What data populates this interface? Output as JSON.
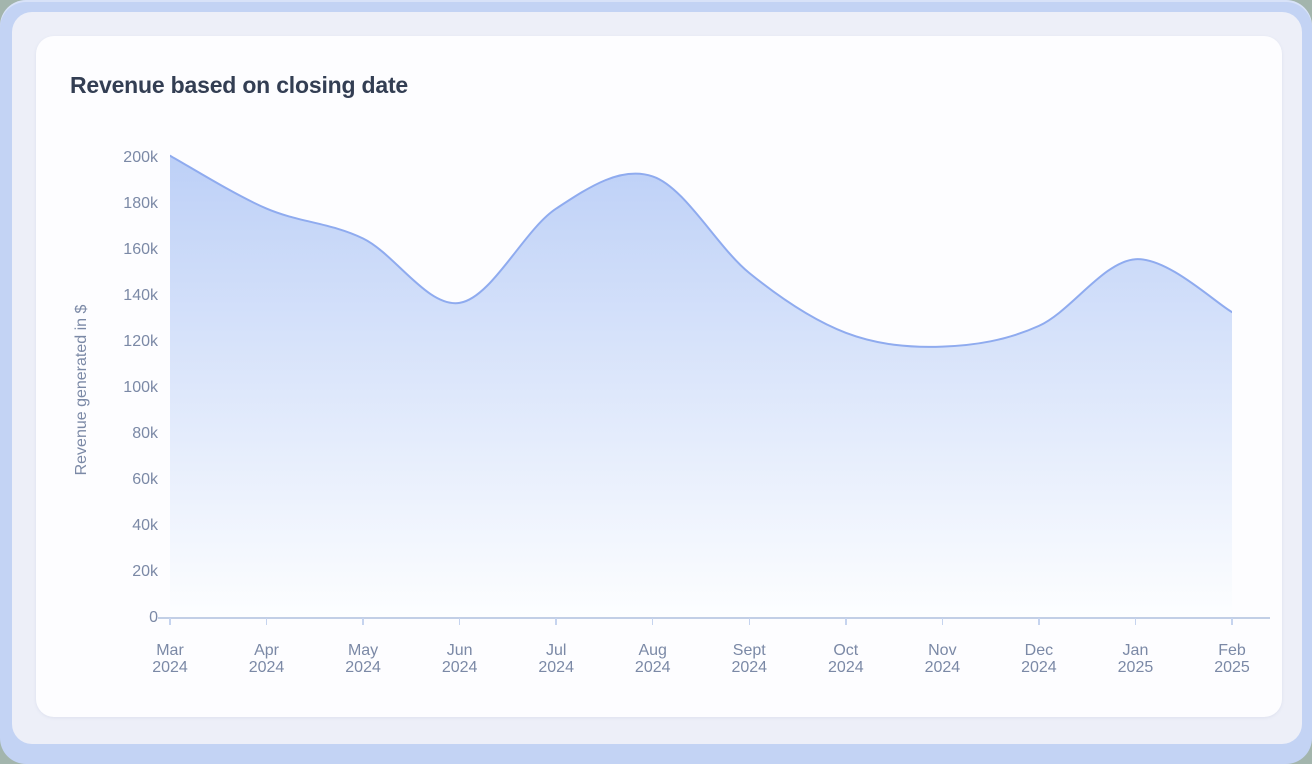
{
  "card": {
    "title": "Revenue based on closing date"
  },
  "chart_data": {
    "type": "area",
    "title": "Revenue based on closing date",
    "xlabel": "",
    "ylabel": "Revenue generated in $",
    "categories": [
      "Mar 2024",
      "Apr 2024",
      "May 2024",
      "Jun 2024",
      "Jul 2024",
      "Aug 2024",
      "Sept 2024",
      "Oct 2024",
      "Nov 2024",
      "Dec 2024",
      "Jan 2025",
      "Feb 2025"
    ],
    "values": [
      201000,
      178000,
      165000,
      137000,
      178000,
      192000,
      150000,
      124000,
      118000,
      127000,
      156000,
      133000
    ],
    "ylim": [
      0,
      200000
    ],
    "ytick_values": [
      0,
      20000,
      40000,
      60000,
      80000,
      100000,
      120000,
      140000,
      160000,
      180000,
      200000
    ],
    "ytick_labels": [
      "0",
      "20k",
      "40k",
      "60k",
      "80k",
      "100k",
      "120k",
      "140k",
      "160k",
      "180k",
      "200k"
    ],
    "grid": false,
    "legend": false,
    "smooth": true
  },
  "colors": {
    "page_rim": "#a3b5ad",
    "frame": "#c3d3f4",
    "inner_background": "#edeff8",
    "card_background": "#fdfdff",
    "title_text": "#333e53",
    "axis_text": "#7b89a6",
    "axis_line": "#c2cfe6",
    "tick": "#c6d4ef",
    "line": "#8fabef",
    "area_top": "#bdd0f7",
    "area_bottom": "#fdfeff"
  }
}
